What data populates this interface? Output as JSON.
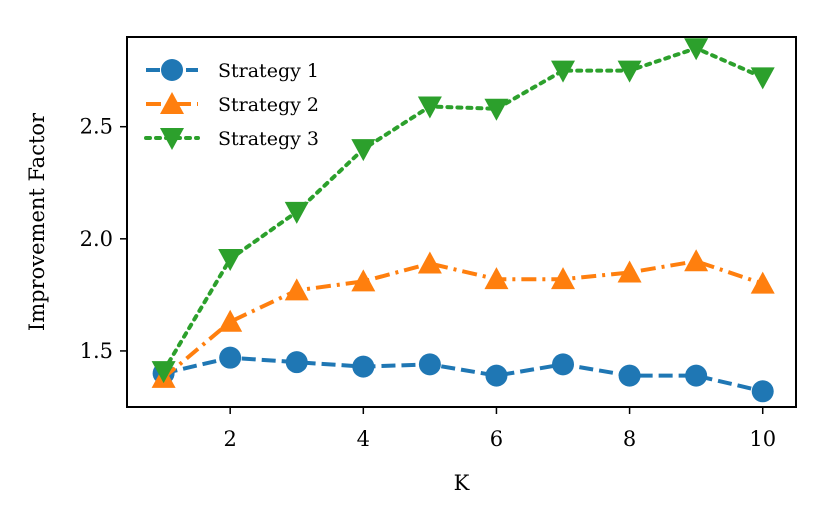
{
  "chart_data": {
    "type": "line",
    "title": "",
    "xlabel": "K",
    "ylabel": "Improvement Factor",
    "x": [
      1,
      2,
      3,
      4,
      5,
      6,
      7,
      8,
      9,
      10
    ],
    "xlim": [
      0.45,
      10.5
    ],
    "ylim": [
      1.25,
      2.9
    ],
    "xticks": [
      2,
      4,
      6,
      8,
      10
    ],
    "yticks": [
      1.5,
      2.0,
      2.5
    ],
    "xtick_labels": [
      "2",
      "4",
      "6",
      "8",
      "10"
    ],
    "ytick_labels": [
      "1.5",
      "2.0",
      "2.5"
    ],
    "grid": false,
    "legend_position": "top-left",
    "series": [
      {
        "name": "Strategy 1",
        "color": "#1f77b4",
        "line_style": "dashed",
        "marker": "circle",
        "values": [
          1.4,
          1.47,
          1.45,
          1.43,
          1.44,
          1.39,
          1.44,
          1.39,
          1.39,
          1.32
        ]
      },
      {
        "name": "Strategy 2",
        "color": "#ff7f0e",
        "line_style": "dashdot",
        "marker": "triangle-up",
        "values": [
          1.38,
          1.63,
          1.77,
          1.81,
          1.89,
          1.82,
          1.82,
          1.85,
          1.9,
          1.8
        ]
      },
      {
        "name": "Strategy 3",
        "color": "#2ca02c",
        "line_style": "dotted",
        "marker": "triangle-down",
        "values": [
          1.41,
          1.91,
          2.12,
          2.4,
          2.59,
          2.58,
          2.75,
          2.75,
          2.85,
          2.72
        ]
      }
    ]
  }
}
